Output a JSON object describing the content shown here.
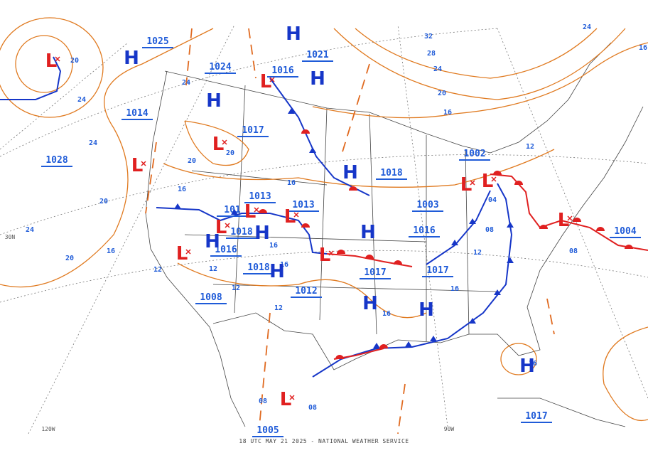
{
  "footer": "18 UTC MAY 21 2025 - NATIONAL WEATHER SERVICE",
  "grid_labels": [
    "120W",
    "90W",
    "30N"
  ],
  "pressure_labels": [
    "1025",
    "1024",
    "1021",
    "1016",
    "1014",
    "1017",
    "1028",
    "1002",
    "1018",
    "1013",
    "1013",
    "1003",
    "101",
    "1018",
    "1016",
    "1004",
    "1016",
    "1018",
    "1017",
    "1017",
    "1008",
    "1012",
    "1005",
    "1017"
  ],
  "isobar_labels": [
    "32",
    "28",
    "24",
    "20",
    "16",
    "24",
    "20",
    "24",
    "24",
    "20",
    "24",
    "20",
    "16",
    "20",
    "20",
    "16",
    "16",
    "12",
    "04",
    "08",
    "12",
    "08",
    "16",
    "16",
    "16",
    "12",
    "12",
    "12",
    "12",
    "16",
    "16",
    "08",
    "08",
    "24",
    "16"
  ],
  "highs": [
    "H",
    "H",
    "H",
    "H",
    "H",
    "H",
    "H",
    "H",
    "H",
    "H",
    "H",
    "H"
  ],
  "lows": [
    "L",
    "L",
    "L",
    "L",
    "L",
    "L",
    "L",
    "L",
    "L",
    "L",
    "L",
    "L",
    "L"
  ]
}
